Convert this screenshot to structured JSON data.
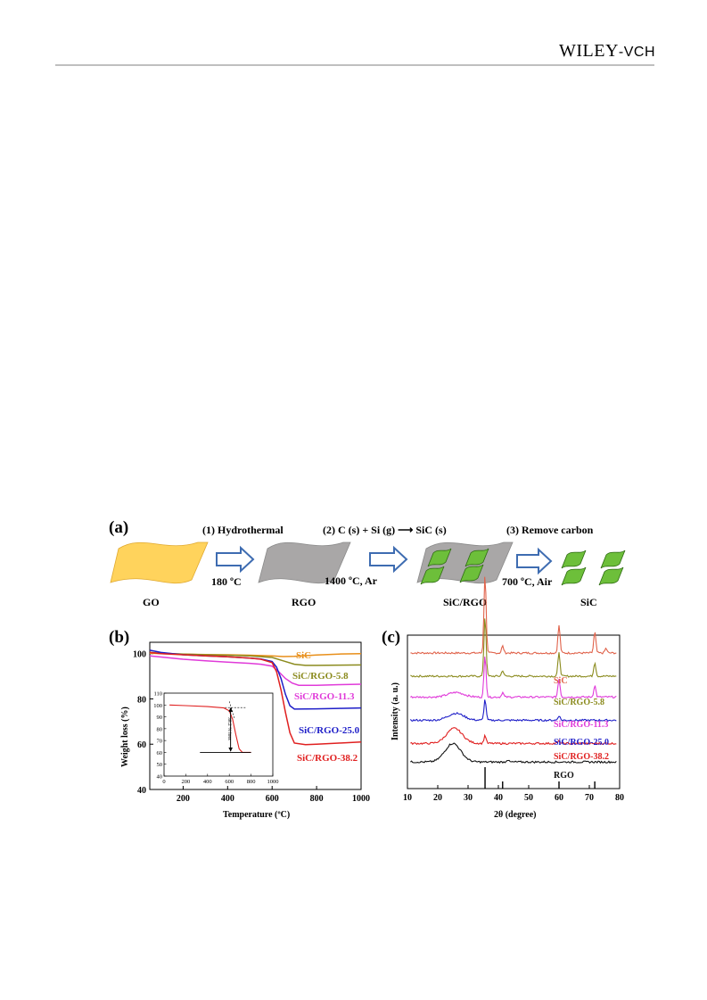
{
  "header": {
    "publisher_main": "WILEY",
    "publisher_suffix": "-VCH"
  },
  "panel_a": {
    "label": "(a)",
    "step1": "(1) Hydrothermal",
    "step1_cond": "180 ºC",
    "step2": "(2) C (s) + Si (g) ⟶ SiC (s)",
    "step2_cond": "1400 ºC, Ar",
    "step3": "(3) Remove carbon",
    "step3_cond": "700 ºC, Air",
    "materials": [
      "GO",
      "RGO",
      "SiC/RGO",
      "SiC"
    ],
    "colors": {
      "go": "#FFD35C",
      "rgo": "#A9A7A7",
      "sic": "#6DBF3A",
      "arrow": "#3E6CB1"
    }
  },
  "panel_b": {
    "label": "(b)"
  },
  "panel_c": {
    "label": "(c)"
  },
  "chart_data": [
    {
      "type": "line",
      "xlabel": "Temperature (ºC)",
      "ylabel": "Weight loss (%)",
      "xlim": [
        50,
        1000
      ],
      "ylim": [
        40,
        105
      ],
      "xticks": [
        200,
        400,
        600,
        800,
        1000
      ],
      "yticks": [
        40,
        60,
        80,
        100
      ],
      "legend_placement": "right, labels beside curves",
      "series": [
        {
          "name": "SiC",
          "color": "#E88F1A",
          "x": [
            50,
            100,
            200,
            300,
            400,
            500,
            600,
            650,
            700,
            800,
            900,
            1000
          ],
          "y": [
            100.2,
            100.0,
            99.8,
            99.6,
            99.5,
            99.3,
            99.0,
            98.7,
            98.8,
            99.4,
            99.8,
            100.0
          ]
        },
        {
          "name": "SiC/RGO-5.8",
          "color": "#8B8B1E",
          "x": [
            50,
            100,
            200,
            300,
            400,
            500,
            600,
            650,
            700,
            750,
            800,
            900,
            1000
          ],
          "y": [
            100.5,
            100.2,
            99.8,
            99.5,
            99.3,
            99.0,
            98.3,
            96.8,
            95.3,
            94.8,
            94.8,
            94.9,
            95.0
          ]
        },
        {
          "name": "SiC/RGO-11.3",
          "color": "#E03AD9",
          "x": [
            50,
            100,
            200,
            300,
            400,
            500,
            550,
            600,
            630,
            660,
            690,
            720,
            800,
            900,
            1000
          ],
          "y": [
            99.0,
            98.5,
            97.5,
            96.8,
            96.2,
            95.7,
            95.3,
            94.5,
            92.0,
            89.0,
            87.0,
            86.0,
            86.0,
            86.3,
            86.5
          ]
        },
        {
          "name": "SiC/RGO-25.0",
          "color": "#1E1EC8",
          "x": [
            50,
            100,
            200,
            300,
            400,
            500,
            550,
            600,
            620,
            640,
            660,
            680,
            700,
            800,
            900,
            1000
          ],
          "y": [
            101.5,
            100.5,
            99.5,
            99.0,
            98.6,
            98.0,
            97.6,
            96.5,
            94.0,
            89.0,
            82.0,
            77.0,
            75.5,
            75.6,
            75.8,
            76.0
          ]
        },
        {
          "name": "SiC/RGO-38.2",
          "color": "#E02020",
          "x": [
            50,
            100,
            200,
            300,
            400,
            500,
            550,
            600,
            620,
            640,
            660,
            680,
            700,
            750,
            800,
            900,
            1000
          ],
          "y": [
            100.5,
            100.0,
            99.5,
            99.0,
            98.6,
            98.0,
            97.5,
            96.0,
            92.0,
            84.0,
            74.0,
            65.0,
            60.5,
            59.8,
            60.0,
            60.5,
            61.0
          ]
        }
      ],
      "inset": {
        "xlim": [
          0,
          1000
        ],
        "ylim": [
          40,
          110
        ],
        "xticks": [
          0,
          200,
          400,
          600,
          800,
          1000
        ],
        "yticks": [
          40,
          50,
          60,
          70,
          80,
          90,
          100,
          110
        ],
        "annotation": "38.2 % loss",
        "series": [
          {
            "name": "SiC/RGO-38.2",
            "color": "#E02020",
            "x": [
              50,
              200,
              400,
              550,
              600,
              630,
              660,
              690,
              720,
              800
            ],
            "y": [
              100,
              99.5,
              98.6,
              97.5,
              95,
              88,
              75,
              63,
              60,
              60
            ]
          }
        ]
      }
    },
    {
      "type": "line",
      "xlabel": "2θ (degree)",
      "ylabel": "Intensity (a. u.)",
      "xlim": [
        10,
        80
      ],
      "xticks": [
        10,
        20,
        30,
        40,
        50,
        60,
        70,
        80
      ],
      "legend_placement": "right, labels beneath curves",
      "reference_peaks": [
        35.6,
        41.4,
        60.0,
        71.8
      ],
      "series": [
        {
          "name": "SiC",
          "color": "#E0624A",
          "baseline": 5.0,
          "peaks": [
            [
              35.6,
              3.4
            ],
            [
              41.4,
              0.3
            ],
            [
              60.0,
              1.2
            ],
            [
              71.8,
              0.9
            ],
            [
              75.5,
              0.2
            ]
          ]
        },
        {
          "name": "SiC/RGO-5.8",
          "color": "#8B8B1E",
          "baseline": 4.0,
          "peaks": [
            [
              35.6,
              2.6
            ],
            [
              41.4,
              0.25
            ],
            [
              60.0,
              1.0
            ],
            [
              71.8,
              0.6
            ]
          ]
        },
        {
          "name": "SiC/RGO-11.3",
          "color": "#E03AD9",
          "baseline": 3.1,
          "peaks": [
            [
              26,
              0.2
            ],
            [
              35.6,
              1.8
            ],
            [
              41.4,
              0.2
            ],
            [
              60.0,
              0.8
            ],
            [
              71.8,
              0.5
            ]
          ]
        },
        {
          "name": "SiC/RGO-25.0",
          "color": "#1E1EC8",
          "baseline": 2.1,
          "peaks": [
            [
              26,
              0.3
            ],
            [
              35.6,
              0.9
            ],
            [
              60.0,
              0.2
            ]
          ]
        },
        {
          "name": "SiC/RGO-38.2",
          "color": "#E02020",
          "baseline": 1.1,
          "peaks": [
            [
              25.5,
              0.65
            ],
            [
              35.6,
              0.35
            ],
            [
              60,
              0.1
            ]
          ]
        },
        {
          "name": "RGO",
          "color": "#111111",
          "baseline": 0.3,
          "peaks": [
            [
              25.0,
              0.8
            ],
            [
              43,
              0.1
            ]
          ]
        }
      ]
    }
  ]
}
